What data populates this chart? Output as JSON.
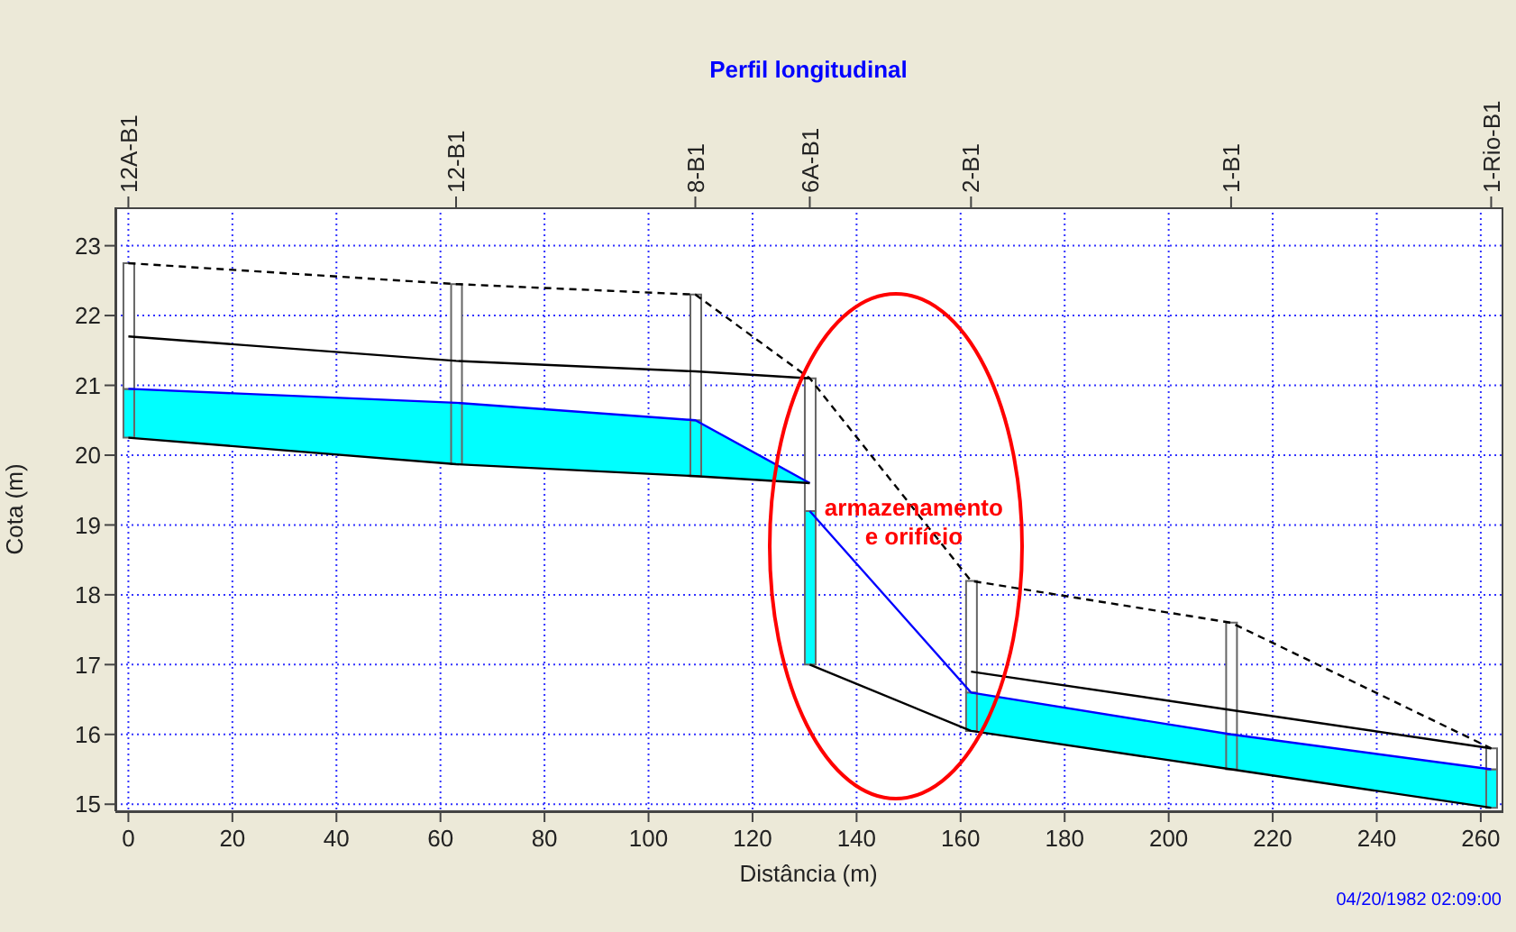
{
  "chart_data": {
    "type": "line",
    "title": "Perfil longitudinal",
    "xlabel": "Distância (m)",
    "ylabel": "Cota (m)",
    "xlim": [
      -2.5,
      264
    ],
    "xticks": [
      0,
      20,
      40,
      60,
      80,
      100,
      120,
      140,
      160,
      180,
      200,
      220,
      240,
      260
    ],
    "ylim": [
      14.9,
      23.55
    ],
    "yticks": [
      15,
      16,
      17,
      18,
      19,
      20,
      21,
      22,
      23
    ],
    "grid": true,
    "marker": "none",
    "annotations": [
      {
        "text": "armazenamento e orifício",
        "x": 151,
        "y": 19.0
      },
      "04/20/1982 02:09:00",
      {
        "text": "12A-B1",
        "x": 0
      },
      {
        "text": "12-B1",
        "x": 63
      },
      {
        "text": "8-B1",
        "x": 109
      },
      {
        "text": "6A-B1",
        "x": 131
      },
      {
        "text": "2-B1",
        "x": 162
      },
      {
        "text": "1-B1",
        "x": 212
      },
      {
        "text": "1-Rio-B1",
        "x": 262
      }
    ],
    "series": [
      {
        "line_style": "dashed",
        "color": "#000000",
        "x": [
          0,
          63,
          109,
          131,
          162,
          212,
          262
        ],
        "values": [
          22.75,
          22.45,
          22.3,
          21.1,
          18.2,
          17.6,
          15.8
        ]
      },
      {
        "color": "#000000",
        "x": [
          0,
          63,
          109,
          131
        ],
        "values": [
          21.7,
          21.35,
          21.2,
          21.1
        ]
      },
      {
        "color": "#0000ff",
        "x": [
          0,
          63,
          109,
          131
        ],
        "values": [
          20.95,
          20.75,
          20.5,
          19.6
        ],
        "lower": [
          20.25,
          19.87,
          19.7,
          19.6
        ],
        "upper": [
          20.95,
          20.75,
          20.5,
          19.6
        ]
      },
      {
        "color": "#000000",
        "x": [
          0,
          63,
          109,
          131
        ],
        "values": [
          20.25,
          19.87,
          19.7,
          19.6
        ]
      },
      {
        "color": "#000000",
        "x": [
          162,
          212,
          262
        ],
        "values": [
          16.9,
          16.35,
          15.8
        ]
      },
      {
        "color": "#0000ff",
        "x": [
          131,
          162,
          212,
          262
        ],
        "values": [
          19.2,
          16.6,
          16.0,
          15.5
        ],
        "lower": [
          null,
          16.05,
          15.5,
          14.95
        ],
        "upper": [
          null,
          16.6,
          16.0,
          15.5
        ]
      },
      {
        "color": "#000000",
        "x": [
          131,
          162,
          212,
          262
        ],
        "values": [
          17.0,
          16.05,
          15.5,
          14.95
        ]
      },
      {
        "type": "bar",
        "color": "#00ffff",
        "x": [
          0,
          63,
          109,
          131,
          162,
          212,
          262
        ],
        "base": [
          20.25,
          19.87,
          19.7,
          17.0,
          16.05,
          15.5,
          14.95
        ],
        "values": [
          0.7,
          0.88,
          0.8,
          2.2,
          0.55,
          0.5,
          0.55
        ]
      },
      {
        "type": "bar",
        "color": "#ffffff",
        "x": [
          0,
          63,
          109,
          131,
          162,
          212,
          262
        ],
        "base": [
          20.95,
          20.75,
          20.5,
          19.2,
          16.6,
          16.0,
          15.5
        ],
        "values": [
          1.8,
          1.7,
          1.8,
          1.9,
          1.6,
          1.6,
          0.3
        ]
      }
    ]
  }
}
